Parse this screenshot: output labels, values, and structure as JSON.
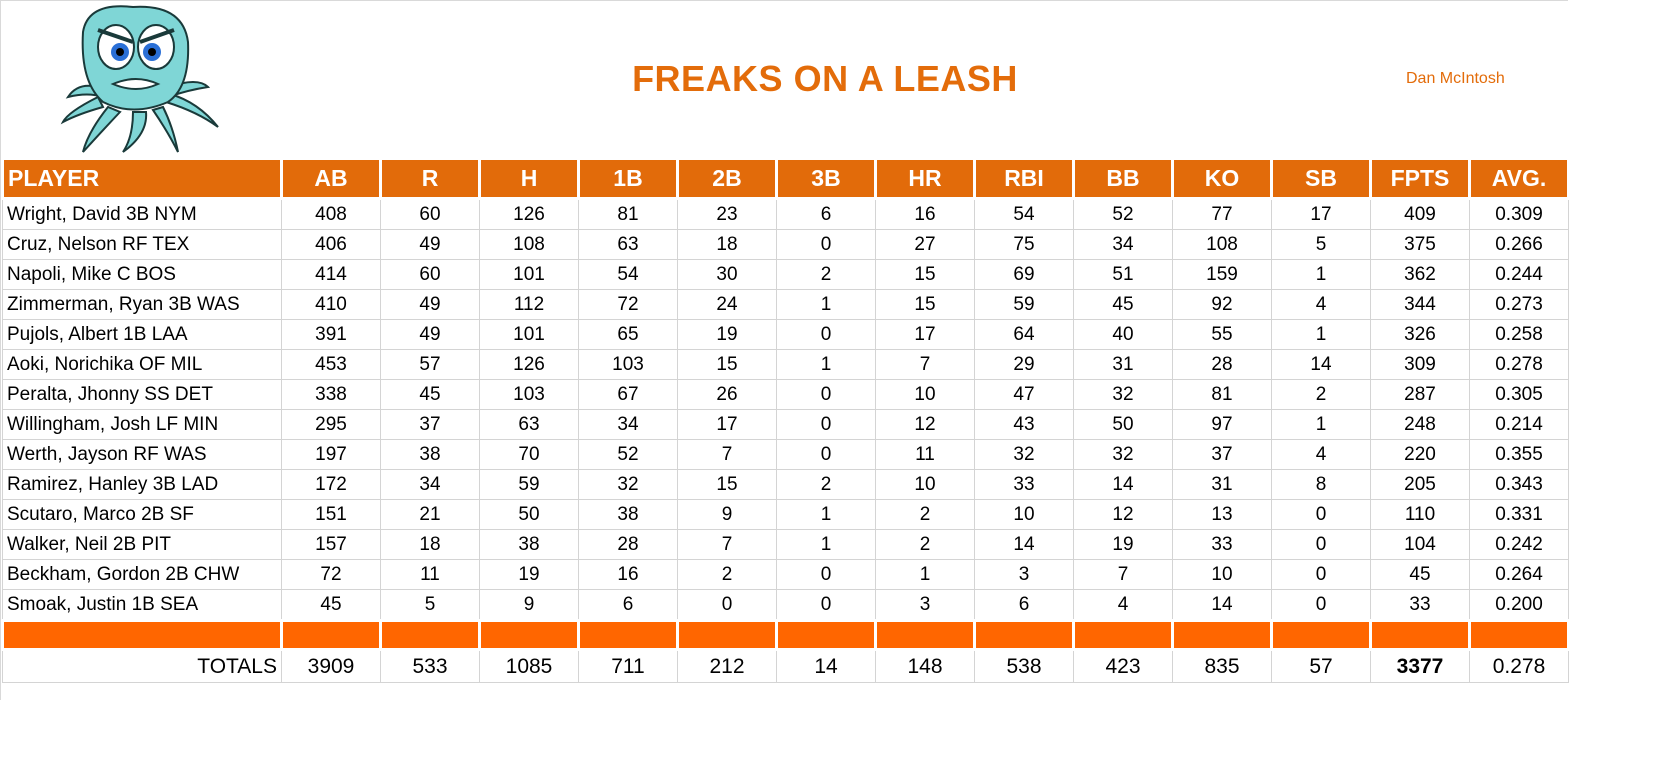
{
  "header": {
    "title": "FREAKS ON A LEASH",
    "owner": "Dan McIntosh"
  },
  "columns": [
    "PLAYER",
    "AB",
    "R",
    "H",
    "1B",
    "2B",
    "3B",
    "HR",
    "RBI",
    "BB",
    "KO",
    "SB",
    "FPTS",
    "AVG."
  ],
  "rows": [
    [
      "Wright, David 3B NYM",
      "408",
      "60",
      "126",
      "81",
      "23",
      "6",
      "16",
      "54",
      "52",
      "77",
      "17",
      "409",
      "0.309"
    ],
    [
      "Cruz, Nelson RF TEX",
      "406",
      "49",
      "108",
      "63",
      "18",
      "0",
      "27",
      "75",
      "34",
      "108",
      "5",
      "375",
      "0.266"
    ],
    [
      "Napoli, Mike C BOS",
      "414",
      "60",
      "101",
      "54",
      "30",
      "2",
      "15",
      "69",
      "51",
      "159",
      "1",
      "362",
      "0.244"
    ],
    [
      "Zimmerman, Ryan 3B WAS",
      "410",
      "49",
      "112",
      "72",
      "24",
      "1",
      "15",
      "59",
      "45",
      "92",
      "4",
      "344",
      "0.273"
    ],
    [
      "Pujols, Albert 1B LAA",
      "391",
      "49",
      "101",
      "65",
      "19",
      "0",
      "17",
      "64",
      "40",
      "55",
      "1",
      "326",
      "0.258"
    ],
    [
      "Aoki, Norichika OF MIL",
      "453",
      "57",
      "126",
      "103",
      "15",
      "1",
      "7",
      "29",
      "31",
      "28",
      "14",
      "309",
      "0.278"
    ],
    [
      "Peralta, Jhonny SS DET",
      "338",
      "45",
      "103",
      "67",
      "26",
      "0",
      "10",
      "47",
      "32",
      "81",
      "2",
      "287",
      "0.305"
    ],
    [
      "Willingham, Josh LF MIN",
      "295",
      "37",
      "63",
      "34",
      "17",
      "0",
      "12",
      "43",
      "50",
      "97",
      "1",
      "248",
      "0.214"
    ],
    [
      "Werth, Jayson RF WAS",
      "197",
      "38",
      "70",
      "52",
      "7",
      "0",
      "11",
      "32",
      "32",
      "37",
      "4",
      "220",
      "0.355"
    ],
    [
      "Ramirez, Hanley 3B LAD",
      "172",
      "34",
      "59",
      "32",
      "15",
      "2",
      "10",
      "33",
      "14",
      "31",
      "8",
      "205",
      "0.343"
    ],
    [
      "Scutaro, Marco 2B SF",
      "151",
      "21",
      "50",
      "38",
      "9",
      "1",
      "2",
      "10",
      "12",
      "13",
      "0",
      "110",
      "0.331"
    ],
    [
      "Walker, Neil 2B PIT",
      "157",
      "18",
      "38",
      "28",
      "7",
      "1",
      "2",
      "14",
      "19",
      "33",
      "0",
      "104",
      "0.242"
    ],
    [
      "Beckham, Gordon 2B CHW",
      "72",
      "11",
      "19",
      "16",
      "2",
      "0",
      "1",
      "3",
      "7",
      "10",
      "0",
      "45",
      "0.264"
    ],
    [
      "Smoak, Justin 1B SEA",
      "45",
      "5",
      "9",
      "6",
      "0",
      "0",
      "3",
      "6",
      "4",
      "14",
      "0",
      "33",
      "0.200"
    ]
  ],
  "totals": [
    "TOTALS",
    "3909",
    "533",
    "1085",
    "711",
    "212",
    "14",
    "148",
    "538",
    "423",
    "835",
    "57",
    "3377",
    "0.278"
  ],
  "colors": {
    "header": "#e26b0a",
    "separator": "#ff6600",
    "title": "#e36c0a"
  },
  "logo": "octopus-mascot"
}
